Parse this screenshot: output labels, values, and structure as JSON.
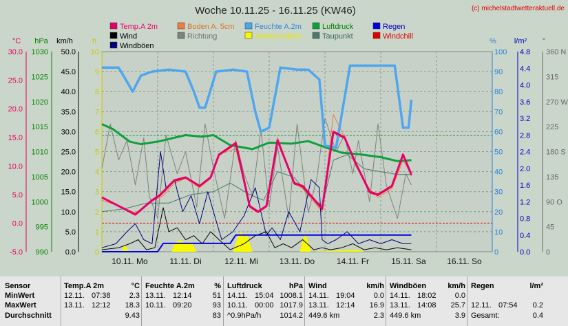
{
  "chart_data": {
    "type": "line",
    "title": "Woche 10.11.25 - 16.11.25 (KW46)",
    "copyright": "(c) michelstadtwetteraktuell.de",
    "x_labels": [
      "10.11. Mo",
      "11.11. Di",
      "12.11. Mi",
      "13.11. Do",
      "14.11. Fr",
      "15.11. Sa",
      "16.11. So"
    ],
    "x_range": [
      0,
      7
    ],
    "grid": true,
    "legend_position": "top",
    "axes": [
      {
        "unit": "°C",
        "ticks": [
          "30.0",
          "25.0",
          "20.0",
          "15.0",
          "10.0",
          "5.0",
          "0.0",
          "-5.0"
        ],
        "ylim": [
          -5,
          30
        ],
        "color": "#e0005a"
      },
      {
        "unit": "hPa",
        "ticks": [
          "1030",
          "1025",
          "1020",
          "1015",
          "1010",
          "1005",
          "1000",
          "995",
          "990"
        ],
        "ylim": [
          990,
          1030
        ],
        "color": "#008000"
      },
      {
        "unit": "km/h",
        "ticks": [
          "50.0",
          "45.0",
          "40.0",
          "35.0",
          "30.0",
          "25.0",
          "20.0",
          "15.0",
          "10.0",
          "5.0",
          "0.0"
        ],
        "ylim": [
          0,
          50
        ],
        "color": "#000000"
      },
      {
        "unit": "h",
        "ticks": [
          "10",
          "9",
          "8",
          "7",
          "6",
          "5",
          "4",
          "3",
          "2",
          "1",
          "0"
        ],
        "ylim": [
          0,
          10
        ],
        "color": "#c8c800"
      },
      {
        "unit": "%",
        "ticks": [
          "100",
          "90",
          "80",
          "70",
          "60",
          "50",
          "40",
          "30",
          "20",
          "10",
          "0"
        ],
        "ylim": [
          0,
          100
        ],
        "color": "#2a7fd5"
      },
      {
        "unit": "l/m²",
        "ticks": [
          "4.8",
          "4.4",
          "4.0",
          "3.6",
          "3.2",
          "2.8",
          "2.4",
          "2.0",
          "1.6",
          "1.2",
          "0.8",
          "0.4",
          "0.0"
        ],
        "ylim": [
          0,
          4.8
        ],
        "color": "#0000c0"
      },
      {
        "unit": "°",
        "ticks": [
          "360 N",
          "315",
          "270 W",
          "225",
          "180 S",
          "135",
          "90 O",
          "45",
          "0"
        ],
        "ylim": [
          0,
          360
        ],
        "color": "#666666"
      }
    ],
    "legend": [
      {
        "name": "Temp.A 2m",
        "color": "#e8006a",
        "text_color": "#e8006a"
      },
      {
        "name": "Boden A. 5cm",
        "color": "#ef7d3d",
        "text_color": "#d8702a"
      },
      {
        "name": "Feuchte A.2m",
        "color": "#4fa6f0",
        "text_color": "#2f86d8"
      },
      {
        "name": "Luftdruck",
        "color": "#0ea03a",
        "text_color": "#008000"
      },
      {
        "name": "Regen",
        "color": "#0000e0",
        "text_color": "#0000c0"
      },
      {
        "name": "Wind",
        "color": "#000000",
        "text_color": "#000000"
      },
      {
        "name": "Richtung",
        "color": "#808080",
        "text_color": "#707070"
      },
      {
        "name": "Sonnenschein",
        "color": "#f8f800",
        "text_color": "#e8e800"
      },
      {
        "name": "Taupunkt",
        "color": "#4a7a6a",
        "text_color": "#3a6a5a"
      },
      {
        "name": "Windchill",
        "color": "#e00000",
        "text_color": "#e00000"
      },
      {
        "name": "Windböen",
        "color": "#00007a",
        "text_color": "#000000"
      }
    ],
    "reference_lines": [
      {
        "axis": "°C",
        "value": 0.0,
        "color": "#e00000"
      },
      {
        "axis": "hPa",
        "value": 1013.25,
        "color": "#0ea03a"
      }
    ],
    "series": [
      {
        "name": "Temp.A 2m",
        "axis": "°C",
        "x": [
          0,
          0.2,
          0.4,
          0.6,
          0.9,
          1.05,
          1.3,
          1.5,
          1.75,
          1.95,
          2.1,
          2.4,
          2.65,
          2.8,
          2.95,
          3.15,
          3.45,
          3.6,
          3.95,
          4.15,
          4.35,
          4.55,
          4.8,
          4.95,
          5.2,
          5.4,
          5.55
        ],
        "y": [
          4.5,
          3.5,
          2.5,
          1.5,
          4.0,
          5.0,
          7.5,
          8.0,
          6.5,
          8.0,
          12.0,
          14.0,
          3.0,
          2.0,
          3.0,
          14.5,
          7.0,
          6.5,
          2.5,
          16.0,
          15.0,
          10.5,
          5.5,
          5.0,
          6.5,
          12.0,
          8.5
        ]
      },
      {
        "name": "Boden A. 5cm",
        "axis": "°C",
        "x": [
          0,
          0.3,
          0.6,
          0.9,
          1.1,
          1.3,
          1.5,
          1.75,
          1.95,
          2.1,
          2.4,
          2.65,
          2.8,
          2.95,
          3.15,
          3.45,
          3.6,
          3.95,
          4.15,
          4.35,
          4.55,
          4.8,
          4.95,
          5.2,
          5.4,
          5.55
        ],
        "y": [
          4,
          3,
          1.8,
          3.8,
          4.8,
          7,
          7.8,
          6.2,
          7.8,
          12,
          13,
          3,
          1.8,
          2.8,
          15,
          7,
          6,
          2,
          19,
          15,
          10,
          6,
          4.5,
          6,
          11,
          8.5
        ]
      },
      {
        "name": "Taupunkt",
        "axis": "°C",
        "x": [
          0,
          0.4,
          0.8,
          1.2,
          1.6,
          2.0,
          2.3,
          2.65,
          2.9,
          3.15,
          3.45,
          3.7,
          3.95,
          4.15,
          4.4,
          4.7,
          5.0,
          5.3,
          5.55
        ],
        "y": [
          2,
          2.5,
          3.5,
          3.5,
          5,
          5.5,
          7,
          5,
          4,
          9,
          8,
          5,
          3,
          11,
          12,
          9.5,
          9,
          8.5,
          8.5
        ]
      },
      {
        "name": "Feuchte A.2m",
        "axis": "%",
        "x": [
          0,
          0.3,
          0.45,
          0.55,
          0.7,
          0.9,
          1.2,
          1.5,
          1.65,
          1.75,
          1.85,
          2.05,
          2.35,
          2.6,
          2.75,
          2.85,
          3.0,
          3.2,
          3.5,
          3.7,
          3.9,
          4.0,
          4.2,
          4.45,
          4.7,
          5.05,
          5.25,
          5.4,
          5.5,
          5.55
        ],
        "y": [
          92,
          92,
          85,
          80,
          88,
          90,
          91,
          90,
          80,
          72,
          72,
          90,
          91,
          90,
          70,
          60,
          62,
          92,
          91,
          91,
          86,
          53,
          52,
          93,
          93,
          93,
          93,
          62,
          62,
          76
        ]
      },
      {
        "name": "Luftdruck",
        "axis": "hPa",
        "x": [
          0,
          0.2,
          0.5,
          0.7,
          1.0,
          1.5,
          1.8,
          2.0,
          2.3,
          2.7,
          3.0,
          3.4,
          3.7,
          4.0,
          4.3,
          4.6,
          5.0,
          5.3,
          5.55
        ],
        "y": [
          1015.5,
          1014.5,
          1012,
          1011.5,
          1012,
          1013.3,
          1013,
          1013.3,
          1011.3,
          1010.5,
          1011.8,
          1011.6,
          1012.1,
          1010.9,
          1009.8,
          1009.5,
          1008.9,
          1008.1,
          1008.3
        ]
      },
      {
        "name": "Richtung",
        "axis": "°",
        "x": [
          0,
          0.15,
          0.3,
          0.45,
          0.6,
          0.75,
          0.85,
          1.0,
          1.15,
          1.35,
          1.5,
          1.7,
          1.85,
          2.0,
          2.2,
          2.4,
          2.55,
          2.7,
          2.85,
          3.0,
          3.15,
          3.35,
          3.5,
          3.7,
          3.85,
          4.0,
          4.2,
          4.35,
          4.5,
          4.6,
          4.8,
          4.95,
          5.1,
          5.3,
          5.45,
          5.55
        ],
        "y": [
          150,
          230,
          165,
          200,
          120,
          205,
          100,
          60,
          210,
          140,
          180,
          80,
          230,
          150,
          60,
          200,
          140,
          100,
          220,
          80,
          190,
          60,
          230,
          70,
          130,
          240,
          180,
          210,
          140,
          200,
          90,
          230,
          120,
          60,
          140,
          120
        ]
      },
      {
        "name": "Wind",
        "axis": "km/h",
        "x": [
          0,
          0.3,
          0.5,
          0.65,
          0.8,
          0.95,
          1.1,
          1.2,
          1.35,
          1.5,
          1.65,
          1.8,
          1.95,
          2.1,
          2.3,
          2.55,
          2.75,
          2.95,
          3.1,
          3.25,
          3.4,
          3.6,
          3.8,
          3.95,
          4.1,
          4.3,
          4.5,
          4.7,
          4.9,
          5.1,
          5.3,
          5.55
        ],
        "y": [
          0.5,
          1,
          2,
          3,
          0.5,
          1,
          11,
          5,
          6,
          3,
          4,
          2,
          5,
          3,
          0.5,
          2,
          4,
          5,
          1,
          2,
          1,
          3,
          0.5,
          1,
          0.5,
          1,
          2,
          0.5,
          1,
          0.5,
          1,
          0.5
        ]
      },
      {
        "name": "Windböen",
        "axis": "km/h",
        "x": [
          0,
          0.25,
          0.45,
          0.6,
          0.75,
          0.9,
          1.05,
          1.15,
          1.3,
          1.45,
          1.6,
          1.75,
          1.9,
          2.0,
          2.15,
          2.35,
          2.55,
          2.75,
          2.95,
          3.05,
          3.2,
          3.35,
          3.55,
          3.75,
          3.9,
          3.95,
          4.05,
          4.2,
          4.4,
          4.6,
          4.8,
          5.0,
          5.2,
          5.4,
          5.55
        ],
        "y": [
          1,
          2,
          5,
          7,
          3,
          2,
          25,
          16,
          18,
          10,
          14,
          7,
          15,
          10,
          3,
          5,
          9,
          16,
          4,
          6,
          3,
          10,
          5,
          18,
          16,
          3,
          2,
          3,
          5,
          2,
          3,
          2,
          3,
          2,
          2
        ]
      },
      {
        "name": "Windchill",
        "axis": "°C",
        "x": [
          0.9,
          1.05,
          1.3,
          1.5,
          1.75,
          1.95,
          2.1,
          2.4,
          2.65,
          2.8,
          2.95,
          3.15,
          3.45,
          3.6,
          3.95,
          4.15,
          4.35,
          4.55,
          4.8,
          4.95,
          5.2,
          5.4,
          5.55
        ],
        "y": [
          3.8,
          4.8,
          7.3,
          7.8,
          6.3,
          7.8,
          11.8,
          13.8,
          2.8,
          1.8,
          2.8,
          14.3,
          6.8,
          6.3,
          2.3,
          15.8,
          14.8,
          10.3,
          5.3,
          4.8,
          6.3,
          11.8,
          8.3
        ]
      },
      {
        "name": "Regen",
        "axis": "l/m²",
        "x": [
          0,
          1.0,
          1.1,
          1.2,
          1.45,
          2.3,
          2.4,
          3.5,
          3.6,
          5.55
        ],
        "y": [
          0,
          0,
          0.2,
          0.2,
          0.2,
          0.2,
          0.4,
          0.4,
          0.4,
          0.4
        ]
      },
      {
        "name": "Sonnenschein",
        "axis": "h",
        "type": "area",
        "x": [
          0.35,
          0.4,
          0.45,
          0.5,
          1.25,
          1.3,
          1.4,
          1.5,
          1.6,
          1.7,
          2.35,
          2.45,
          2.5,
          2.55,
          2.6,
          2.7,
          3.55,
          3.6,
          3.65,
          3.7,
          3.75,
          4.6,
          4.7
        ],
        "y": [
          0,
          0.3,
          0.2,
          0,
          0,
          0.4,
          0.6,
          0.4,
          0.5,
          0,
          0,
          0.8,
          1.0,
          0.7,
          0.9,
          0,
          0,
          0.6,
          0.9,
          0.5,
          0,
          0.1,
          0
        ]
      }
    ]
  },
  "stats": {
    "headers": [
      {
        "label": "Sensor",
        "unit": ""
      },
      {
        "label": "Temp.A 2m",
        "unit": "°C"
      },
      {
        "label": "Feuchte A.2m",
        "unit": "%"
      },
      {
        "label": "Luftdruck",
        "unit": "hPa"
      },
      {
        "label": "Wind",
        "unit": "km/h"
      },
      {
        "label": "Windböen",
        "unit": "km/h"
      },
      {
        "label": "Regen",
        "unit": "l/m²"
      }
    ],
    "row_labels": [
      "MinWert",
      "MaxWert",
      "Durchschnitt"
    ],
    "rows": [
      [
        [
          "12.11.",
          "07:38",
          "2.3"
        ],
        [
          "13.11.",
          "12:14",
          "51"
        ],
        [
          "14.11.",
          "15:04",
          "1008.1"
        ],
        [
          "14.11.",
          "19:04",
          "0.0"
        ],
        [
          "14.11.",
          "18:02",
          "0.0"
        ],
        [
          "",
          "",
          ""
        ]
      ],
      [
        [
          "13.11.",
          "12:12",
          "18.3"
        ],
        [
          "10.11.",
          "09:20",
          "93"
        ],
        [
          "10.11.",
          "00:00",
          "1017.9"
        ],
        [
          "13.11.",
          "12:14",
          "16.9"
        ],
        [
          "13.11.",
          "14:08",
          "25.7"
        ],
        [
          "12.11.",
          "07:54",
          "0.2"
        ]
      ],
      [
        [
          "",
          "",
          "9.43"
        ],
        [
          "",
          "",
          "83"
        ],
        [
          "^0.9hPa/h",
          "",
          "1014.2"
        ],
        [
          "449.6 km",
          "",
          "2.3"
        ],
        [
          "449.6 km",
          "",
          "3.9"
        ],
        [
          "Gesamt:",
          "",
          "0.4"
        ]
      ]
    ]
  }
}
